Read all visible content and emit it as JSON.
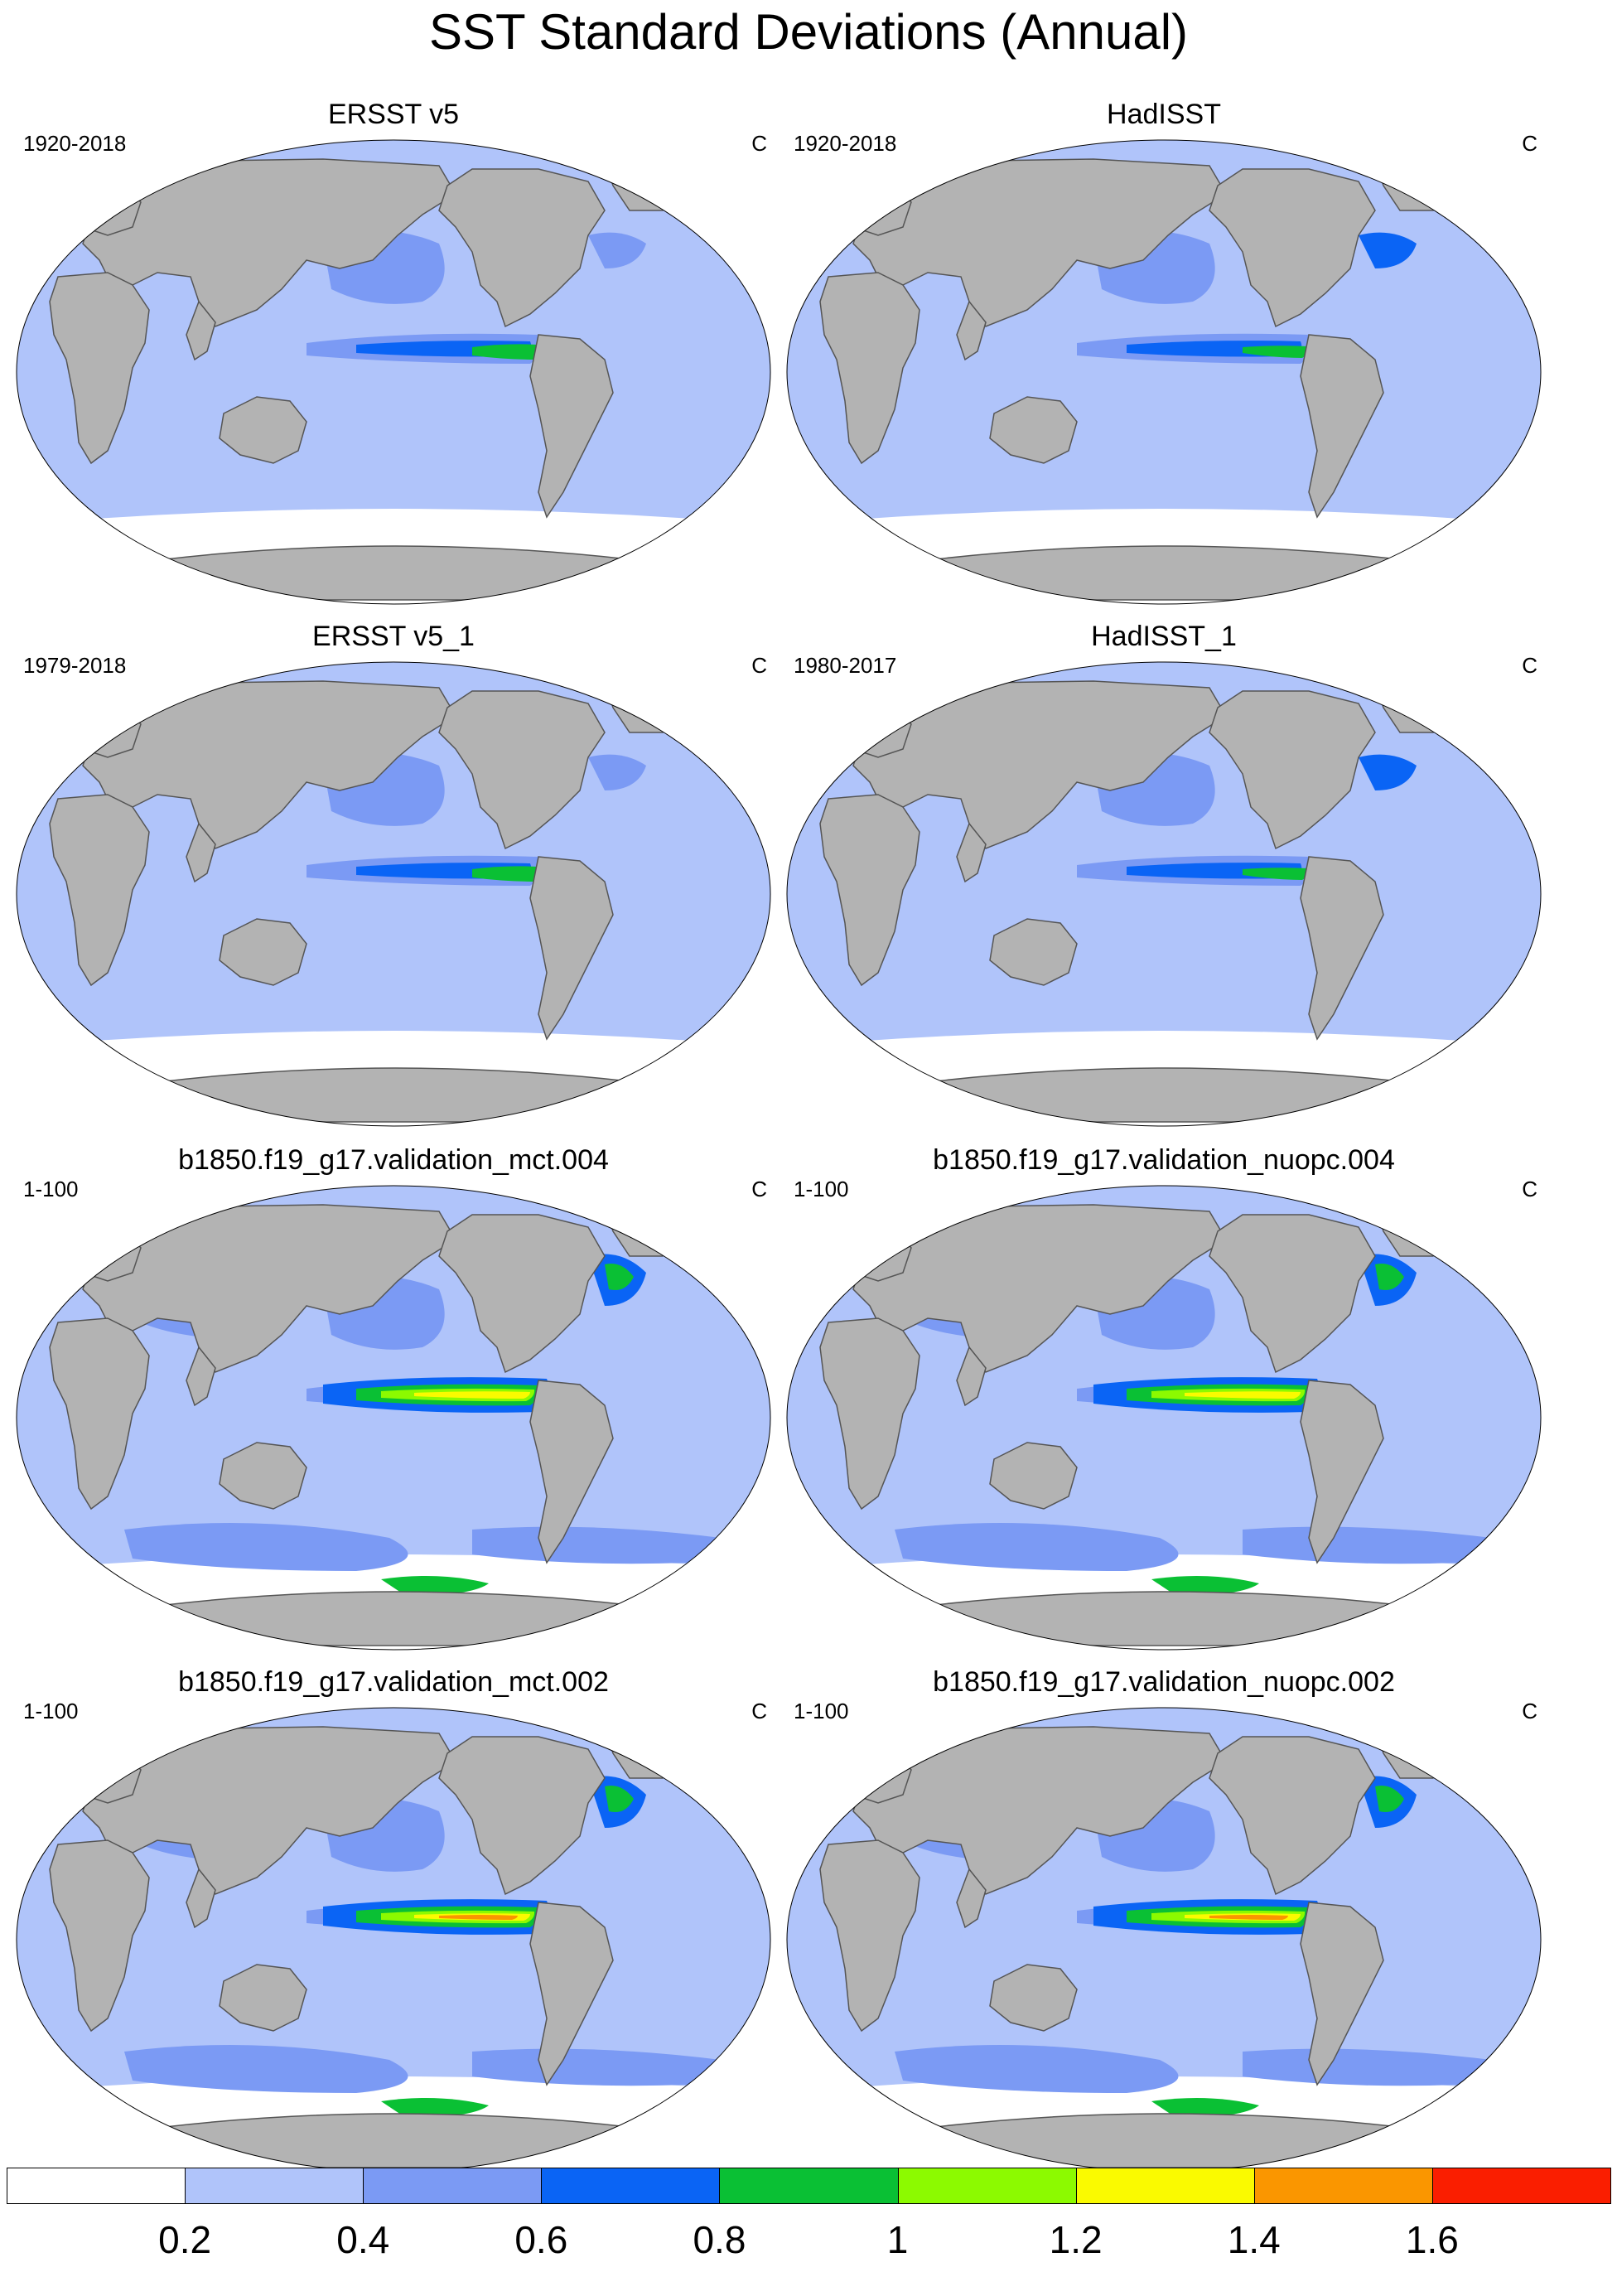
{
  "title": "SST Standard Deviations (Annual)",
  "units": "C",
  "colors": {
    "land": "#b3b3b3",
    "coast": "#555555",
    "levels": [
      "#ffffff",
      "#b0c4fa",
      "#7b9af4",
      "#0a64f5",
      "#0ac034",
      "#8cfa00",
      "#fafa00",
      "#fa9600",
      "#fa1e00"
    ]
  },
  "panels": [
    {
      "name": "ERSST v5",
      "period": "1920-2018",
      "units": "C",
      "variant": "obs"
    },
    {
      "name": "HadISST",
      "period": "1920-2018",
      "units": "C",
      "variant": "obs-had"
    },
    {
      "name": "ERSST v5_1",
      "period": "1979-2018",
      "units": "C",
      "variant": "obs"
    },
    {
      "name": "HadISST_1",
      "period": "1980-2017",
      "units": "C",
      "variant": "obs-had"
    },
    {
      "name": "b1850.f19_g17.validation_mct.004",
      "period": "1-100",
      "units": "C",
      "variant": "model"
    },
    {
      "name": "b1850.f19_g17.validation_nuopc.004",
      "period": "1-100",
      "units": "C",
      "variant": "model"
    },
    {
      "name": "b1850.f19_g17.validation_mct.002",
      "period": "1-100",
      "units": "C",
      "variant": "model-strong"
    },
    {
      "name": "b1850.f19_g17.validation_nuopc.002",
      "period": "1-100",
      "units": "C",
      "variant": "model-strong"
    }
  ],
  "colorbar": {
    "labels": [
      "0.2",
      "0.4",
      "0.6",
      "0.8",
      "1",
      "1.2",
      "1.4",
      "1.6"
    ]
  }
}
